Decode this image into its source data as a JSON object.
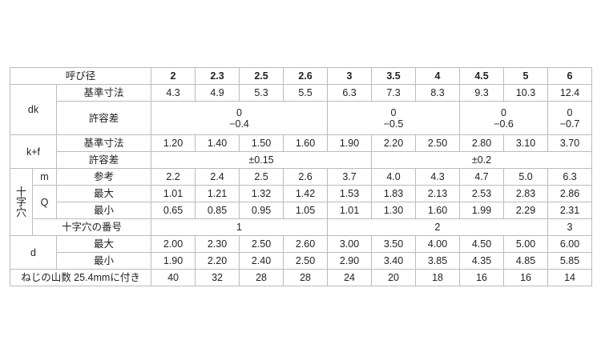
{
  "header": {
    "label": "呼び径",
    "sizes": [
      "2",
      "2.3",
      "2.5",
      "2.6",
      "3",
      "3.5",
      "4",
      "4.5",
      "5",
      "6"
    ]
  },
  "dk": {
    "label": "dk",
    "basic_label": "基準寸法",
    "basic": [
      "4.3",
      "4.9",
      "5.3",
      "5.5",
      "6.3",
      "7.3",
      "8.3",
      "9.3",
      "10.3",
      "12.4"
    ],
    "tol_label": "許容差",
    "tol": [
      {
        "upper": "0",
        "lower": "−0.4"
      },
      {
        "upper": "0",
        "lower": "−0.5"
      },
      {
        "upper": "0",
        "lower": "−0.6"
      },
      {
        "upper": "0",
        "lower": "−0.7"
      }
    ]
  },
  "kf": {
    "label": "k+f",
    "basic_label": "基準寸法",
    "basic": [
      "1.20",
      "1.40",
      "1.50",
      "1.60",
      "1.90",
      "2.20",
      "2.50",
      "2.80",
      "3.10",
      "3.70"
    ],
    "tol_label": "許容差",
    "tol": [
      "±0.15",
      "±0.2"
    ]
  },
  "recess": {
    "label_chars": [
      "十",
      "字",
      "穴"
    ],
    "m": {
      "label": "m",
      "ref_label": "参考",
      "values": [
        "2.2",
        "2.4",
        "2.5",
        "2.6",
        "3.7",
        "4.0",
        "4.3",
        "4.7",
        "5.0",
        "6.3"
      ]
    },
    "q": {
      "label": "Q",
      "max_label": "最大",
      "max": [
        "1.01",
        "1.21",
        "1.32",
        "1.42",
        "1.53",
        "1.83",
        "2.13",
        "2.53",
        "2.83",
        "2.86"
      ],
      "min_label": "最小",
      "min": [
        "0.65",
        "0.85",
        "0.95",
        "1.05",
        "1.01",
        "1.30",
        "1.60",
        "1.99",
        "2.29",
        "2.31"
      ]
    },
    "number_label": "十字穴の番号",
    "numbers": [
      "1",
      "2",
      "3"
    ]
  },
  "d": {
    "label": "d",
    "max_label": "最大",
    "max": [
      "2.00",
      "2.30",
      "2.50",
      "2.60",
      "3.00",
      "3.50",
      "4.00",
      "4.50",
      "5.00",
      "6.00"
    ],
    "min_label": "最小",
    "min": [
      "1.90",
      "2.20",
      "2.40",
      "2.50",
      "2.90",
      "3.40",
      "3.85",
      "4.35",
      "4.85",
      "5.85"
    ]
  },
  "threads": {
    "label": "ねじの山数 25.4mmに付き",
    "values": [
      "40",
      "32",
      "28",
      "28",
      "24",
      "20",
      "18",
      "16",
      "16",
      "14"
    ]
  }
}
